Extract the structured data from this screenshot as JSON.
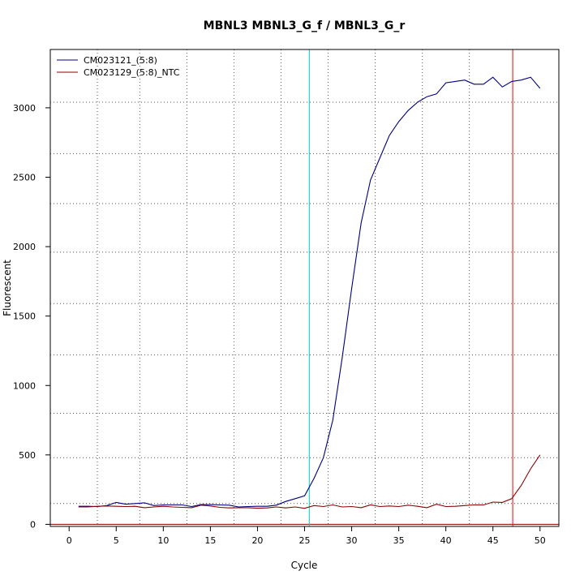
{
  "chart_data": {
    "type": "line",
    "title": "MBNL3  MBNL3_G_f / MBNL3_G_r",
    "xlabel": "Cycle",
    "ylabel": "Fluorescent",
    "xlim": [
      -2,
      52
    ],
    "ylim": [
      -15,
      3420
    ],
    "x_ticks": [
      0,
      5,
      10,
      15,
      20,
      25,
      30,
      35,
      40,
      45,
      50
    ],
    "y_ticks": [
      0,
      500,
      1000,
      1500,
      2000,
      2500,
      3000
    ],
    "grid": "dotted",
    "grid_x": [
      3,
      7.5,
      12.5,
      17.5,
      22.5,
      27.5,
      32.5,
      37.5,
      42.5
    ],
    "grid_y": [
      150,
      480,
      800,
      1220,
      1590,
      1960,
      2310,
      2670,
      3040
    ],
    "legend_position": "top-left",
    "x": [
      1,
      2,
      3,
      4,
      5,
      6,
      7,
      8,
      9,
      10,
      11,
      12,
      13,
      14,
      15,
      16,
      17,
      18,
      19,
      20,
      21,
      22,
      23,
      24,
      25,
      26,
      27,
      28,
      29,
      30,
      31,
      32,
      33,
      34,
      35,
      36,
      37,
      38,
      39,
      40,
      41,
      42,
      43,
      44,
      45,
      46,
      47,
      48,
      49,
      50
    ],
    "series": [
      {
        "name": "CM023121_(5:8)",
        "color": "#000080",
        "values": [
          130,
          130,
          128,
          135,
          158,
          145,
          150,
          155,
          135,
          140,
          140,
          140,
          128,
          142,
          142,
          140,
          138,
          125,
          128,
          130,
          130,
          138,
          165,
          185,
          205,
          330,
          480,
          750,
          1200,
          1700,
          2170,
          2480,
          2640,
          2800,
          2900,
          2980,
          3040,
          3080,
          3100,
          3180,
          3190,
          3200,
          3170,
          3170,
          3220,
          3150,
          3190,
          3200,
          3220,
          3140
        ]
      },
      {
        "name": "CM023129_(5:8)_NTC",
        "color": "#8b0000",
        "values": [
          125,
          125,
          130,
          132,
          130,
          128,
          130,
          120,
          125,
          130,
          125,
          122,
          120,
          138,
          132,
          122,
          118,
          120,
          120,
          116,
          118,
          125,
          118,
          125,
          115,
          135,
          128,
          140,
          125,
          128,
          120,
          140,
          128,
          132,
          128,
          138,
          130,
          120,
          145,
          128,
          130,
          135,
          140,
          140,
          160,
          158,
          185,
          280,
          400,
          500
        ]
      }
    ],
    "vertical_lines": [
      {
        "x": 25.5,
        "color": "#00cccc"
      },
      {
        "x": 47.1,
        "color": "#ff0000"
      }
    ],
    "horizontal_lines": [
      {
        "y": 0,
        "color": "#8b0000"
      }
    ]
  }
}
